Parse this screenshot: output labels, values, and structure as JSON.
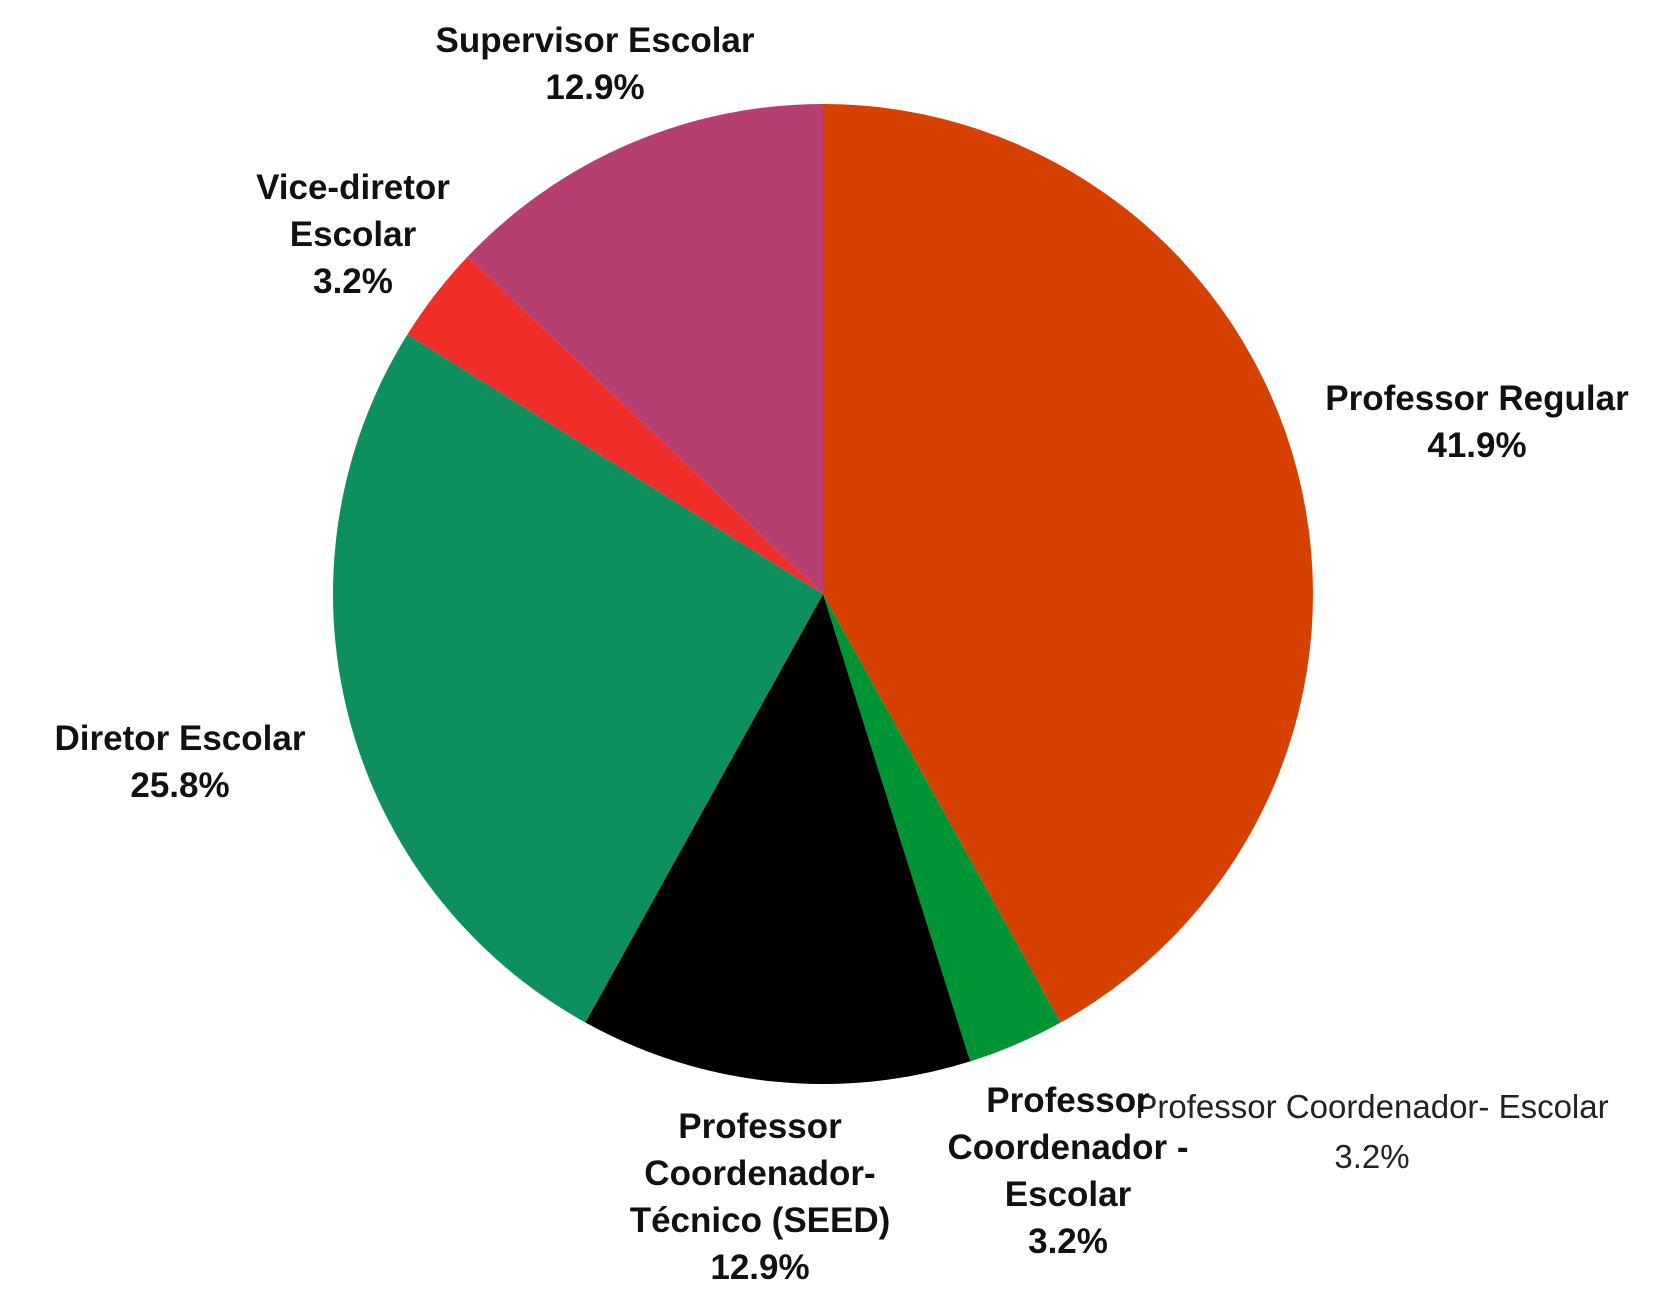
{
  "chart_data": {
    "type": "pie",
    "labels": [
      "Professor Regular",
      "Professor Coordenador - Escolar",
      "Professor Coordenador- Técnico (SEED)",
      "Diretor Escolar",
      "Vice-diretor Escolar",
      "Supervisor Escolar"
    ],
    "values": [
      41.9,
      3.2,
      12.9,
      25.8,
      3.2,
      12.9
    ],
    "value_labels": [
      "41.9%",
      "3.2%",
      "12.9%",
      "25.8%",
      "3.2%",
      "12.9%"
    ],
    "colors": [
      "#d64000",
      "#009534",
      "#000000",
      "#0e8f5e",
      "#ef2e2a",
      "#b53f70"
    ],
    "annotations": [
      "Professor Coordenador- Escolar",
      "3.2%"
    ]
  }
}
